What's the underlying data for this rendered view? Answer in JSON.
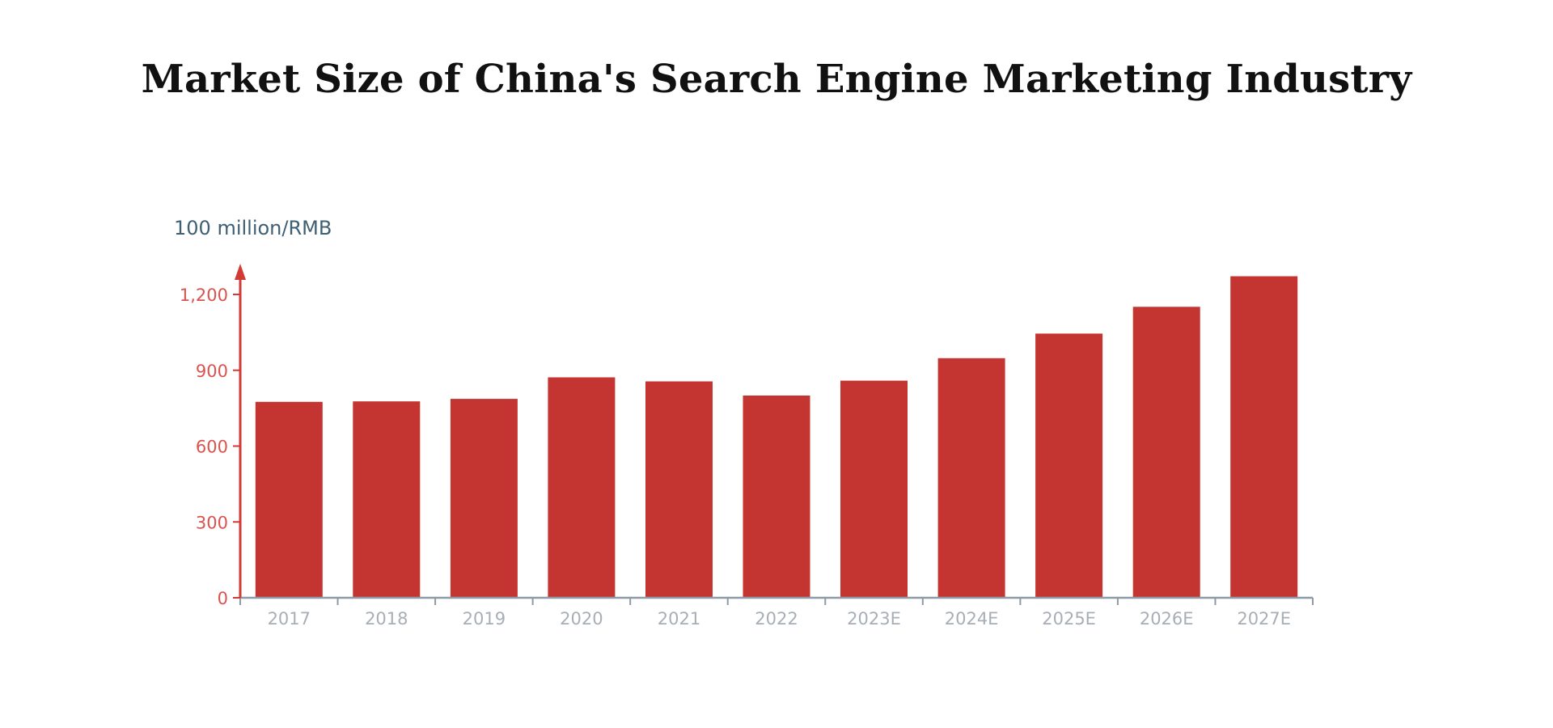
{
  "chart_data": {
    "type": "bar",
    "title": "Market Size of China's Search Engine Marketing Industry",
    "ylabel": "100 million/RMB",
    "xlabel": "",
    "categories": [
      "2017",
      "2018",
      "2019",
      "2020",
      "2021",
      "2022",
      "2023E",
      "2024E",
      "2025E",
      "2026E",
      "2027E"
    ],
    "values": [
      775,
      777,
      787,
      872,
      856,
      800,
      859,
      948,
      1045,
      1151,
      1272
    ],
    "ylim": [
      0,
      1200
    ],
    "yticks": [
      0,
      300,
      600,
      900,
      1200
    ],
    "ytick_labels": [
      "0",
      "300",
      "600",
      "900",
      "1,200"
    ],
    "grid": false,
    "legend": "none",
    "colors": {
      "bar": "#c43431",
      "y_axis": "#d23a36",
      "y_tick_text": "#d9534f",
      "x_axis": "#8e9aa5",
      "x_tick_text": "#a7aeb6"
    }
  }
}
